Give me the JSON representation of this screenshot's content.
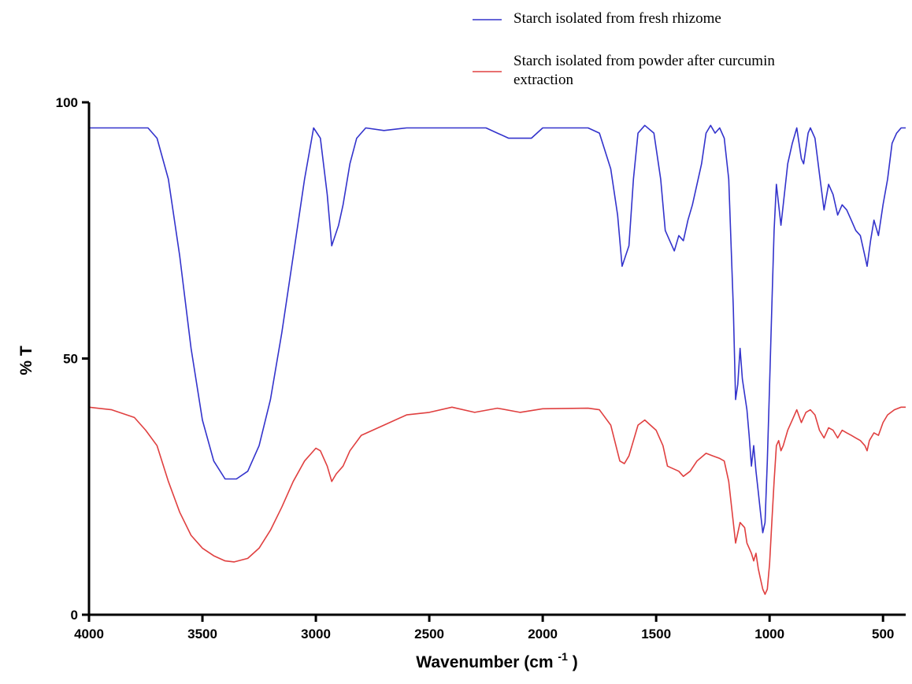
{
  "chart_data": {
    "type": "line",
    "xlabel": "Wavenumber (cm",
    "xlabel_superscript": "-1",
    "xlabel_suffix": ")",
    "ylabel": "% T",
    "xlim": [
      4000,
      400
    ],
    "ylim": [
      0,
      100
    ],
    "x_reversed": true,
    "x_ticks": [
      "4000",
      "3500",
      "3000",
      "2500",
      "2000",
      "1500",
      "1000",
      "500"
    ],
    "y_ticks": [
      "0",
      "50",
      "100"
    ],
    "grid": false,
    "legend_position": "top-right",
    "series": [
      {
        "name": "Starch isolated from fresh rhizome",
        "color": "#3333cc",
        "points": [
          [
            4000,
            95
          ],
          [
            3800,
            95
          ],
          [
            3740,
            95
          ],
          [
            3700,
            93
          ],
          [
            3650,
            85
          ],
          [
            3600,
            70
          ],
          [
            3550,
            52
          ],
          [
            3500,
            38
          ],
          [
            3450,
            30
          ],
          [
            3400,
            26.5
          ],
          [
            3350,
            26.5
          ],
          [
            3300,
            28
          ],
          [
            3250,
            33
          ],
          [
            3200,
            42
          ],
          [
            3150,
            55
          ],
          [
            3100,
            70
          ],
          [
            3050,
            85
          ],
          [
            3010,
            95
          ],
          [
            2980,
            93
          ],
          [
            2950,
            82
          ],
          [
            2930,
            72
          ],
          [
            2900,
            76
          ],
          [
            2880,
            80
          ],
          [
            2850,
            88
          ],
          [
            2820,
            93
          ],
          [
            2780,
            95
          ],
          [
            2700,
            94.5
          ],
          [
            2600,
            95
          ],
          [
            2400,
            95
          ],
          [
            2250,
            95
          ],
          [
            2200,
            94
          ],
          [
            2150,
            93
          ],
          [
            2050,
            93
          ],
          [
            2000,
            95
          ],
          [
            1800,
            95
          ],
          [
            1750,
            94
          ],
          [
            1700,
            87
          ],
          [
            1670,
            78
          ],
          [
            1650,
            68
          ],
          [
            1620,
            72
          ],
          [
            1600,
            85
          ],
          [
            1580,
            94
          ],
          [
            1550,
            95.5
          ],
          [
            1510,
            94
          ],
          [
            1480,
            85
          ],
          [
            1460,
            75
          ],
          [
            1440,
            73
          ],
          [
            1420,
            71
          ],
          [
            1400,
            74
          ],
          [
            1380,
            73
          ],
          [
            1360,
            77
          ],
          [
            1340,
            80
          ],
          [
            1300,
            88
          ],
          [
            1280,
            94
          ],
          [
            1260,
            95.5
          ],
          [
            1240,
            94
          ],
          [
            1220,
            95
          ],
          [
            1200,
            93
          ],
          [
            1180,
            85
          ],
          [
            1160,
            60
          ],
          [
            1150,
            42
          ],
          [
            1140,
            45
          ],
          [
            1130,
            52
          ],
          [
            1120,
            46
          ],
          [
            1100,
            40
          ],
          [
            1090,
            35
          ],
          [
            1080,
            29
          ],
          [
            1070,
            33
          ],
          [
            1060,
            28
          ],
          [
            1050,
            24
          ],
          [
            1040,
            20
          ],
          [
            1030,
            16
          ],
          [
            1020,
            18
          ],
          [
            1010,
            30
          ],
          [
            1000,
            45
          ],
          [
            990,
            60
          ],
          [
            980,
            75
          ],
          [
            970,
            84
          ],
          [
            960,
            80
          ],
          [
            950,
            76
          ],
          [
            940,
            80
          ],
          [
            920,
            88
          ],
          [
            900,
            92
          ],
          [
            880,
            95
          ],
          [
            860,
            89
          ],
          [
            850,
            88
          ],
          [
            830,
            94
          ],
          [
            820,
            95
          ],
          [
            800,
            93
          ],
          [
            780,
            86
          ],
          [
            760,
            79
          ],
          [
            740,
            84
          ],
          [
            720,
            82
          ],
          [
            700,
            78
          ],
          [
            680,
            80
          ],
          [
            660,
            79
          ],
          [
            640,
            77
          ],
          [
            620,
            75
          ],
          [
            600,
            74
          ],
          [
            580,
            70
          ],
          [
            570,
            68
          ],
          [
            555,
            73
          ],
          [
            540,
            77
          ],
          [
            520,
            74
          ],
          [
            500,
            80
          ],
          [
            480,
            85
          ],
          [
            460,
            92
          ],
          [
            440,
            94
          ],
          [
            420,
            95
          ],
          [
            400,
            95
          ]
        ]
      },
      {
        "name": "Starch isolated from powder after curcumin extraction",
        "color": "#e04040",
        "points": [
          [
            4000,
            40.5
          ],
          [
            3900,
            40
          ],
          [
            3800,
            38.5
          ],
          [
            3750,
            36
          ],
          [
            3700,
            33
          ],
          [
            3650,
            26
          ],
          [
            3600,
            20
          ],
          [
            3550,
            15.5
          ],
          [
            3500,
            13
          ],
          [
            3450,
            11.5
          ],
          [
            3400,
            10.5
          ],
          [
            3360,
            10.3
          ],
          [
            3300,
            11
          ],
          [
            3250,
            13
          ],
          [
            3200,
            16.5
          ],
          [
            3150,
            21
          ],
          [
            3100,
            26
          ],
          [
            3050,
            30
          ],
          [
            3000,
            32.5
          ],
          [
            2980,
            32
          ],
          [
            2950,
            29
          ],
          [
            2930,
            26
          ],
          [
            2910,
            27.5
          ],
          [
            2880,
            29
          ],
          [
            2850,
            32
          ],
          [
            2800,
            35
          ],
          [
            2700,
            37
          ],
          [
            2600,
            39
          ],
          [
            2500,
            39.5
          ],
          [
            2400,
            40.5
          ],
          [
            2300,
            39.5
          ],
          [
            2200,
            40.3
          ],
          [
            2100,
            39.5
          ],
          [
            2000,
            40.2
          ],
          [
            1800,
            40.3
          ],
          [
            1750,
            40
          ],
          [
            1700,
            37
          ],
          [
            1660,
            30
          ],
          [
            1640,
            29.5
          ],
          [
            1620,
            31
          ],
          [
            1580,
            37
          ],
          [
            1550,
            38
          ],
          [
            1500,
            36
          ],
          [
            1470,
            33
          ],
          [
            1450,
            29
          ],
          [
            1400,
            28
          ],
          [
            1380,
            27
          ],
          [
            1350,
            28
          ],
          [
            1320,
            30
          ],
          [
            1280,
            31.5
          ],
          [
            1250,
            31
          ],
          [
            1220,
            30.5
          ],
          [
            1200,
            30
          ],
          [
            1180,
            26
          ],
          [
            1160,
            18
          ],
          [
            1150,
            14
          ],
          [
            1130,
            18
          ],
          [
            1110,
            17
          ],
          [
            1100,
            14
          ],
          [
            1080,
            12
          ],
          [
            1070,
            10.5
          ],
          [
            1060,
            12
          ],
          [
            1050,
            9
          ],
          [
            1040,
            7
          ],
          [
            1030,
            5
          ],
          [
            1020,
            4
          ],
          [
            1010,
            5
          ],
          [
            1000,
            10
          ],
          [
            990,
            18
          ],
          [
            980,
            26
          ],
          [
            970,
            33
          ],
          [
            960,
            34
          ],
          [
            950,
            32
          ],
          [
            940,
            33
          ],
          [
            920,
            36
          ],
          [
            900,
            38
          ],
          [
            880,
            40
          ],
          [
            860,
            37.5
          ],
          [
            840,
            39.5
          ],
          [
            820,
            40
          ],
          [
            800,
            39
          ],
          [
            780,
            36
          ],
          [
            760,
            34.5
          ],
          [
            740,
            36.5
          ],
          [
            720,
            36
          ],
          [
            700,
            34.5
          ],
          [
            680,
            36
          ],
          [
            660,
            35.5
          ],
          [
            640,
            35
          ],
          [
            620,
            34.5
          ],
          [
            600,
            34
          ],
          [
            580,
            33
          ],
          [
            570,
            32
          ],
          [
            560,
            34
          ],
          [
            540,
            35.5
          ],
          [
            520,
            35
          ],
          [
            500,
            37.5
          ],
          [
            480,
            39
          ],
          [
            450,
            40
          ],
          [
            420,
            40.5
          ],
          [
            400,
            40.5
          ]
        ]
      }
    ]
  }
}
